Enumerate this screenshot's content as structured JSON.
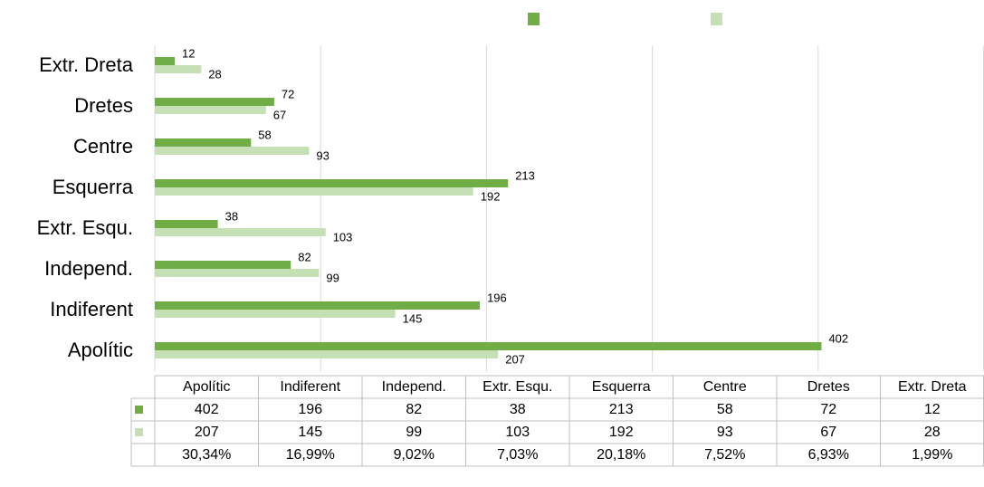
{
  "chart_data": {
    "type": "bar",
    "orientation": "horizontal",
    "categories": [
      "Apolític",
      "Indiferent",
      "Independ.",
      "Extr. Esqu.",
      "Esquerra",
      "Centre",
      "Dretes",
      "Extr. Dreta"
    ],
    "series": [
      {
        "color": "#70ad47",
        "values": [
          402,
          196,
          82,
          38,
          213,
          58,
          72,
          12
        ]
      },
      {
        "color": "#c5e0b4",
        "values": [
          207,
          145,
          99,
          103,
          192,
          93,
          67,
          28
        ]
      }
    ],
    "percentages": [
      "30,34%",
      "16,99%",
      "9,02%",
      "7,03%",
      "20,18%",
      "7,52%",
      "6,93%",
      "1,99%"
    ],
    "xlim": [
      0,
      500
    ],
    "xticks": [
      0,
      100,
      200,
      300,
      400,
      500
    ],
    "grid": true,
    "legend": "top"
  }
}
